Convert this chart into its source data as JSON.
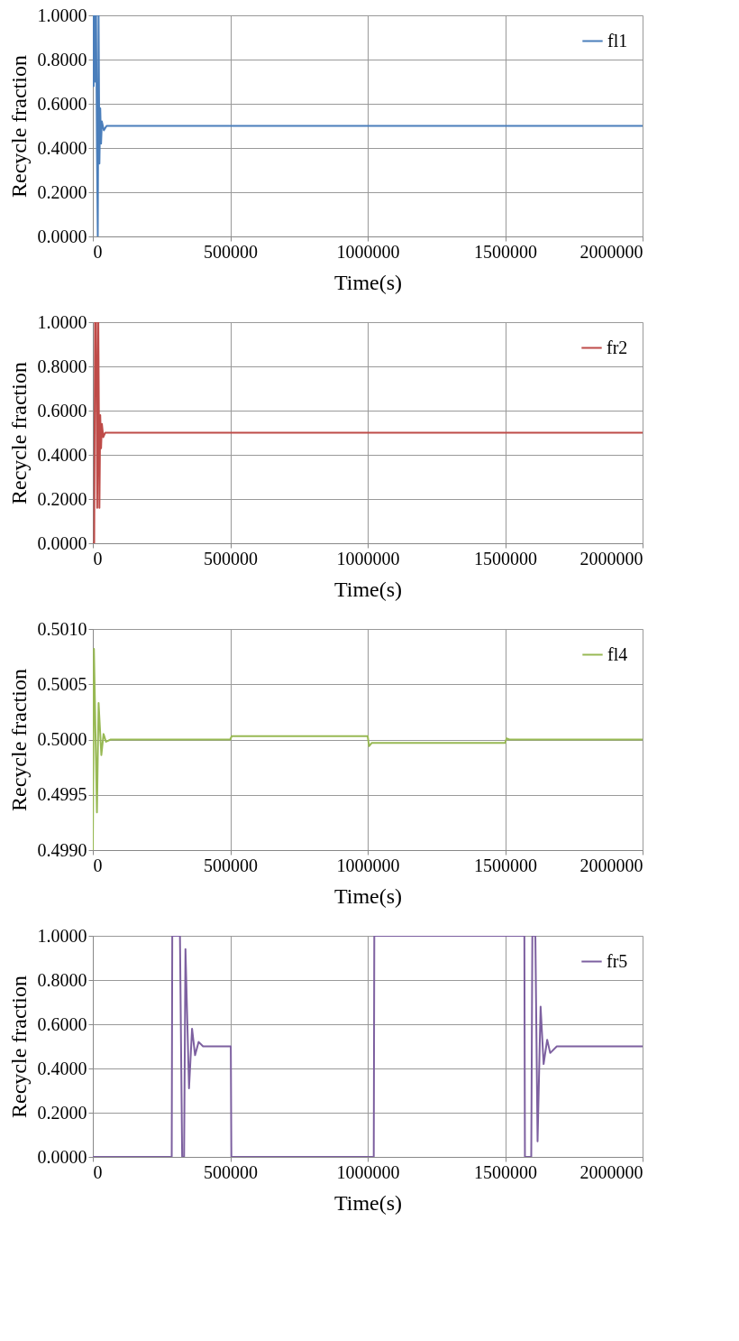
{
  "chart_data": [
    {
      "type": "line",
      "xlabel": "Time(s)",
      "ylabel": "Recycle fraction",
      "xlim": [
        0,
        2000000
      ],
      "xticks": [
        0,
        500000,
        1000000,
        1500000,
        2000000
      ],
      "ylim": [
        0,
        1
      ],
      "yticks": [
        {
          "value": 0,
          "label": "0.0000"
        },
        {
          "value": 0.2,
          "label": "0.2000"
        },
        {
          "value": 0.4,
          "label": "0.4000"
        },
        {
          "value": 0.6,
          "label": "0.6000"
        },
        {
          "value": 0.8,
          "label": "0.8000"
        },
        {
          "value": 1,
          "label": "1.0000"
        }
      ],
      "grid": true,
      "legend": "top right",
      "marker": "none",
      "line_style": "solid",
      "series": [
        {
          "name": "fl1",
          "color": "#4a7ebb",
          "x": [
            0,
            3000,
            6000,
            9000,
            12000,
            15000,
            18000,
            21000,
            24000,
            27000,
            30000,
            33000,
            40000,
            50000,
            2000000
          ],
          "values": [
            1,
            0.68,
            1,
            0.7,
            1,
            0.4,
            0,
            1,
            0.33,
            0.58,
            0.42,
            0.52,
            0.48,
            0.5,
            0.5
          ]
        }
      ]
    },
    {
      "type": "line",
      "xlabel": "Time(s)",
      "ylabel": "Recycle fraction",
      "xlim": [
        0,
        2000000
      ],
      "xticks": [
        0,
        500000,
        1000000,
        1500000,
        2000000
      ],
      "ylim": [
        0,
        1
      ],
      "yticks": [
        {
          "value": 0,
          "label": "0.0000"
        },
        {
          "value": 0.2,
          "label": "0.2000"
        },
        {
          "value": 0.4,
          "label": "0.4000"
        },
        {
          "value": 0.6,
          "label": "0.6000"
        },
        {
          "value": 0.8,
          "label": "0.8000"
        },
        {
          "value": 1,
          "label": "1.0000"
        }
      ],
      "grid": true,
      "legend": "top right",
      "marker": "none",
      "line_style": "solid",
      "series": [
        {
          "name": "fr2",
          "color": "#be4b48",
          "x": [
            0,
            5000,
            8000,
            12000,
            16000,
            20000,
            24000,
            27000,
            30000,
            33000,
            38000,
            45000,
            2000000
          ],
          "values": [
            0,
            0,
            1,
            1,
            0.16,
            1,
            0.16,
            0.58,
            0.43,
            0.54,
            0.48,
            0.5,
            0.5
          ]
        }
      ]
    },
    {
      "type": "line",
      "xlabel": "Time(s)",
      "ylabel": "Recycle fraction",
      "xlim": [
        0,
        2000000
      ],
      "xticks": [
        0,
        500000,
        1000000,
        1500000,
        2000000
      ],
      "ylim": [
        0.499,
        0.501
      ],
      "yticks": [
        {
          "value": 0.499,
          "label": "0.4990"
        },
        {
          "value": 0.4995,
          "label": "0.4995"
        },
        {
          "value": 0.5,
          "label": "0.5000"
        },
        {
          "value": 0.5005,
          "label": "0.5005"
        },
        {
          "value": 0.501,
          "label": "0.5010"
        }
      ],
      "grid": true,
      "legend": "top right",
      "marker": "none",
      "line_style": "solid",
      "series": [
        {
          "name": "fl4",
          "color": "#98b954",
          "x": [
            0,
            4000,
            15000,
            21000,
            31000,
            39000,
            48000,
            65000,
            500000,
            505000,
            1000000,
            1005000,
            1015000,
            1500000,
            1505000,
            1515000,
            2000000
          ],
          "values": [
            0.499,
            0.50082,
            0.49934,
            0.50033,
            0.49986,
            0.50005,
            0.49998,
            0.5,
            0.5,
            0.50003,
            0.50003,
            0.49994,
            0.49997,
            0.49997,
            0.50001,
            0.5,
            0.5
          ]
        }
      ]
    },
    {
      "type": "line",
      "xlabel": "Time(s)",
      "ylabel": "Recycle fraction",
      "xlim": [
        0,
        2000000
      ],
      "xticks": [
        0,
        500000,
        1000000,
        1500000,
        2000000
      ],
      "ylim": [
        0,
        1
      ],
      "yticks": [
        {
          "value": 0,
          "label": "0.0000"
        },
        {
          "value": 0.2,
          "label": "0.2000"
        },
        {
          "value": 0.4,
          "label": "0.4000"
        },
        {
          "value": 0.6,
          "label": "0.6000"
        },
        {
          "value": 0.8,
          "label": "0.8000"
        },
        {
          "value": 1,
          "label": "1.0000"
        }
      ],
      "grid": true,
      "legend": "top right",
      "marker": "none",
      "line_style": "solid",
      "series": [
        {
          "name": "fr5",
          "color": "#7d60a0",
          "x": [
            0,
            287000,
            289000,
            317000,
            325000,
            332000,
            337000,
            350000,
            361000,
            372000,
            385000,
            401000,
            502000,
            504000,
            1022000,
            1024000,
            1570000,
            1572000,
            1595000,
            1599000,
            1610000,
            1618000,
            1629000,
            1640000,
            1653000,
            1664000,
            1688000,
            2000000
          ],
          "values": [
            0,
            0,
            1,
            1,
            0,
            0,
            0.94,
            0.31,
            0.58,
            0.46,
            0.52,
            0.5,
            0.5,
            0,
            0,
            1,
            1,
            0,
            0,
            1,
            1,
            0.07,
            0.68,
            0.42,
            0.53,
            0.47,
            0.5,
            0.5
          ]
        }
      ]
    }
  ]
}
